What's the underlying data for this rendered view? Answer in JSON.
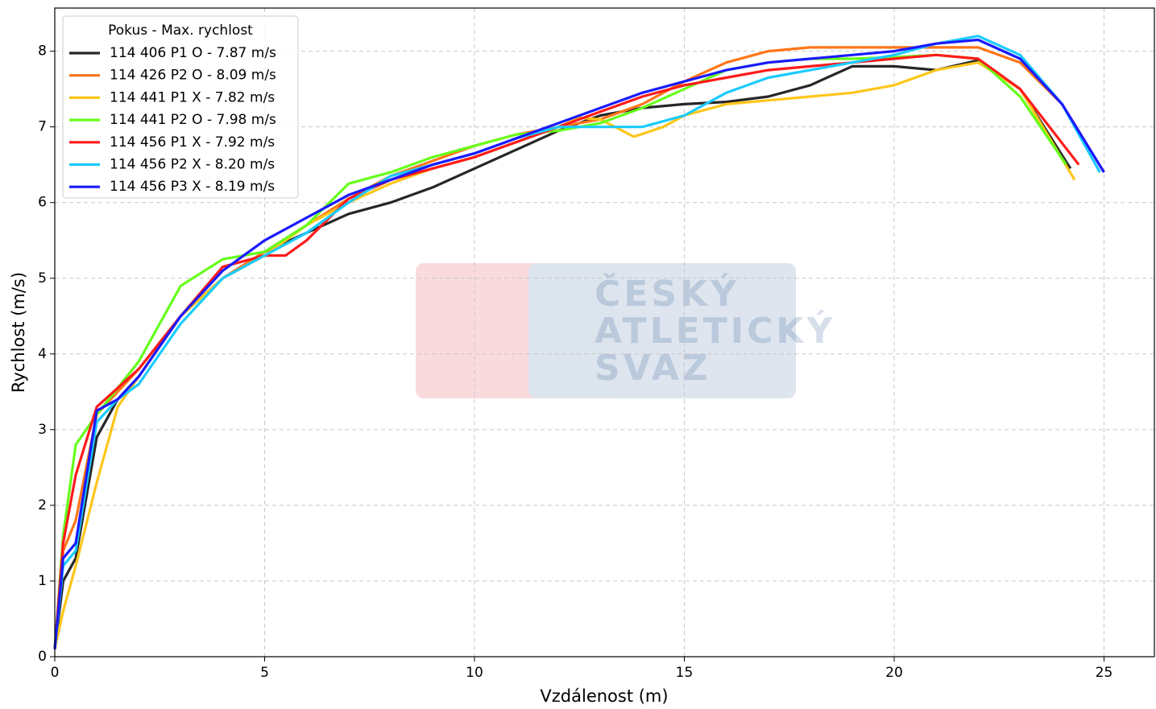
{
  "chart_data": {
    "type": "line",
    "xlabel": "Vzdálenost (m)",
    "ylabel": "Rychlost (m/s)",
    "legend_title": "Pokus - Max. rychlost",
    "legend": "upper left",
    "grid": true,
    "watermark": [
      "ČESKÝ",
      "ATLETICKÝ",
      "SVAZ"
    ],
    "xlim": [
      0,
      26.2
    ],
    "ylim": [
      0,
      8.57
    ],
    "xticks": [
      0,
      5,
      10,
      15,
      20,
      25
    ],
    "yticks": [
      0,
      1,
      2,
      3,
      4,
      5,
      6,
      7,
      8
    ],
    "series": [
      {
        "name": "114 406 P1 O - 7.87 m/s",
        "color": "#262626",
        "x": [
          0,
          0.2,
          0.5,
          1,
          1.5,
          2,
          3,
          4,
          5,
          6,
          7,
          8,
          9,
          10,
          11,
          12,
          13,
          14,
          15,
          16,
          17,
          18,
          19,
          20,
          21,
          22,
          23,
          24.2
        ],
        "values": [
          0.1,
          1.0,
          1.3,
          2.9,
          3.4,
          3.7,
          4.5,
          5.0,
          5.35,
          5.6,
          5.85,
          6.0,
          6.2,
          6.45,
          6.7,
          6.95,
          7.15,
          7.25,
          7.3,
          7.33,
          7.4,
          7.55,
          7.8,
          7.8,
          7.75,
          7.88,
          7.5,
          6.45
        ]
      },
      {
        "name": "114 426 P2 O - 8.09 m/s",
        "color": "#ff7518",
        "x": [
          0,
          0.2,
          0.5,
          1,
          1.5,
          2,
          3,
          4,
          5,
          6,
          7,
          8,
          9,
          10,
          11,
          12,
          13,
          14,
          15,
          16,
          17,
          18,
          19,
          20,
          21,
          22,
          23,
          24,
          25
        ],
        "values": [
          0.1,
          1.4,
          1.8,
          3.2,
          3.5,
          3.8,
          4.5,
          5.0,
          5.35,
          5.7,
          6.05,
          6.35,
          6.55,
          6.75,
          6.9,
          7.0,
          7.1,
          7.3,
          7.6,
          7.85,
          8.0,
          8.05,
          8.05,
          8.05,
          8.05,
          8.05,
          7.85,
          7.3,
          6.4
        ]
      },
      {
        "name": "114 441 P1 X - 7.82 m/s",
        "color": "#ffc61a",
        "x": [
          0,
          0.2,
          0.5,
          1,
          1.5,
          2,
          3,
          4,
          5,
          6,
          7,
          8,
          9,
          10,
          11,
          12,
          12.5,
          13,
          13.8,
          14.5,
          15,
          16,
          17,
          18,
          19,
          20,
          21,
          22,
          23,
          24.3
        ],
        "values": [
          0.1,
          0.6,
          1.2,
          2.3,
          3.3,
          3.7,
          4.5,
          5.0,
          5.3,
          5.7,
          6.0,
          6.25,
          6.45,
          6.6,
          6.8,
          7.0,
          7.12,
          7.1,
          6.87,
          7.0,
          7.15,
          7.3,
          7.35,
          7.4,
          7.45,
          7.55,
          7.75,
          7.85,
          7.5,
          6.3
        ]
      },
      {
        "name": "114 441 P2 O - 7.98 m/s",
        "color": "#66ff1a",
        "x": [
          0,
          0.2,
          0.5,
          1,
          1.5,
          2,
          3,
          4,
          5,
          6,
          7,
          8,
          9,
          10,
          11,
          12,
          13,
          14,
          15,
          16,
          17,
          18,
          19,
          20,
          21,
          22,
          23,
          24.1
        ],
        "values": [
          0.1,
          1.6,
          2.8,
          3.2,
          3.55,
          3.9,
          4.9,
          5.25,
          5.35,
          5.7,
          6.25,
          6.4,
          6.6,
          6.75,
          6.9,
          6.95,
          7.05,
          7.25,
          7.5,
          7.75,
          7.85,
          7.9,
          7.9,
          7.92,
          7.95,
          7.9,
          7.4,
          6.5
        ]
      },
      {
        "name": "114 456 P1 X - 7.92 m/s",
        "color": "#ff1a1a",
        "x": [
          0,
          0.2,
          0.5,
          1,
          1.5,
          2,
          3,
          4,
          5,
          5.5,
          6,
          7,
          8,
          9,
          10,
          11,
          12,
          13,
          14,
          15,
          16,
          17,
          18,
          19,
          20,
          21,
          22,
          23,
          24.4
        ],
        "values": [
          0.1,
          1.5,
          2.4,
          3.3,
          3.55,
          3.8,
          4.5,
          5.15,
          5.3,
          5.3,
          5.5,
          6.05,
          6.3,
          6.45,
          6.6,
          6.8,
          7.0,
          7.2,
          7.4,
          7.55,
          7.65,
          7.75,
          7.8,
          7.85,
          7.9,
          7.95,
          7.9,
          7.5,
          6.5
        ]
      },
      {
        "name": "114 456 P2 X - 8.20 m/s",
        "color": "#1acbff",
        "x": [
          0,
          0.2,
          0.5,
          1,
          1.5,
          2,
          3,
          4,
          5,
          6,
          7,
          8,
          9,
          10,
          11,
          12,
          13,
          14,
          15,
          16,
          17,
          18,
          19,
          20,
          21,
          22,
          23,
          24,
          24.9
        ],
        "values": [
          0.1,
          1.2,
          1.4,
          3.1,
          3.4,
          3.6,
          4.4,
          5.0,
          5.3,
          5.6,
          6.0,
          6.35,
          6.5,
          6.65,
          6.85,
          7.0,
          7.0,
          7.0,
          7.15,
          7.45,
          7.65,
          7.75,
          7.85,
          7.95,
          8.1,
          8.2,
          7.95,
          7.3,
          6.4
        ]
      },
      {
        "name": "114 456 P3 X - 8.19 m/s",
        "color": "#1a1aff",
        "x": [
          0,
          0.2,
          0.5,
          1,
          1.5,
          2,
          3,
          4,
          5,
          6,
          7,
          8,
          9,
          10,
          11,
          12,
          13,
          14,
          15,
          16,
          17,
          18,
          19,
          20,
          21,
          22,
          23,
          24,
          25
        ],
        "values": [
          0.1,
          1.3,
          1.5,
          3.25,
          3.4,
          3.7,
          4.5,
          5.1,
          5.5,
          5.8,
          6.1,
          6.3,
          6.5,
          6.65,
          6.85,
          7.05,
          7.25,
          7.45,
          7.6,
          7.75,
          7.85,
          7.9,
          7.95,
          8.0,
          8.1,
          8.15,
          7.9,
          7.3,
          6.4
        ]
      }
    ]
  }
}
